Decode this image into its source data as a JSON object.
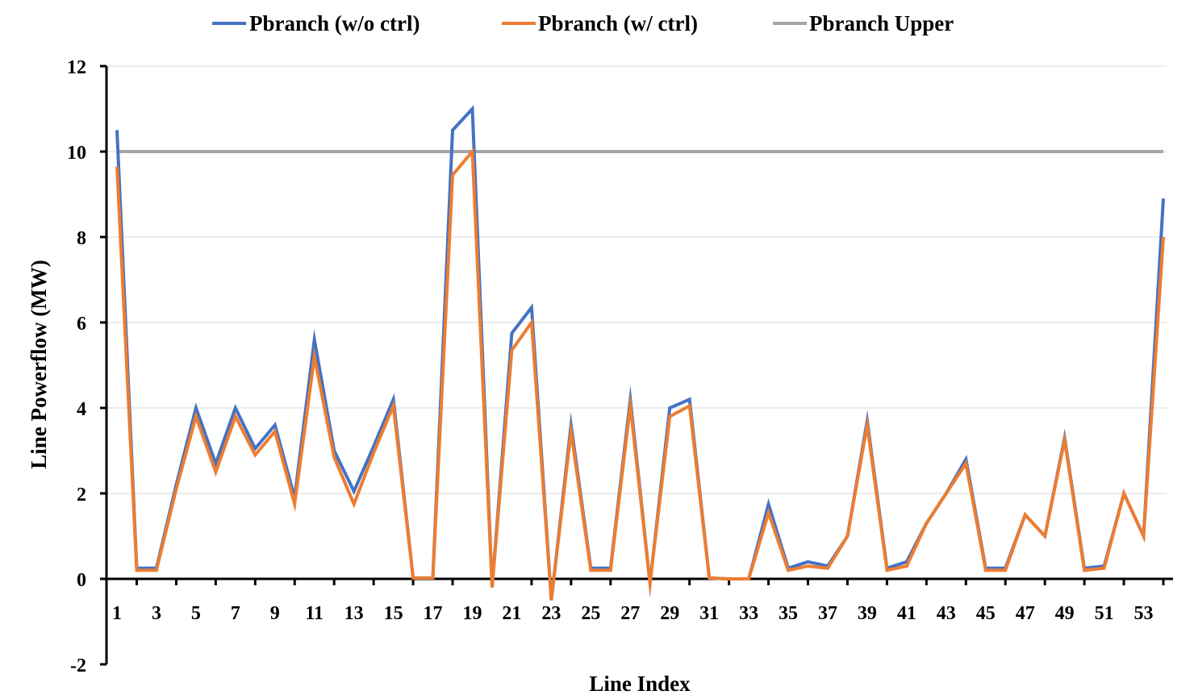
{
  "chart_data": {
    "type": "line",
    "xlabel": "Line Index",
    "ylabel": "Line Powerflow (MW)",
    "ylim": [
      -2,
      12
    ],
    "yticks": [
      -2,
      0,
      2,
      4,
      6,
      8,
      10,
      12
    ],
    "xlim": [
      1,
      54
    ],
    "xtick_labels": [
      "1",
      "3",
      "5",
      "7",
      "9",
      "11",
      "13",
      "15",
      "17",
      "19",
      "21",
      "23",
      "25",
      "27",
      "29",
      "31",
      "33",
      "35",
      "37",
      "39",
      "41",
      "43",
      "45",
      "47",
      "49",
      "51",
      "53"
    ],
    "grid": "horizontal",
    "legend_position": "top",
    "x": [
      1,
      2,
      3,
      4,
      5,
      6,
      7,
      8,
      9,
      10,
      11,
      12,
      13,
      14,
      15,
      16,
      17,
      18,
      19,
      20,
      21,
      22,
      23,
      24,
      25,
      26,
      27,
      28,
      29,
      30,
      31,
      32,
      33,
      34,
      35,
      36,
      37,
      38,
      39,
      40,
      41,
      42,
      43,
      44,
      45,
      46,
      47,
      48,
      49,
      50,
      51,
      52,
      53,
      54
    ],
    "series": [
      {
        "name": "Pbranch (w/o ctrl)",
        "color": "#4472c4",
        "values": [
          10.5,
          0.25,
          0.25,
          2.2,
          4.0,
          2.7,
          4.0,
          3.05,
          3.6,
          1.9,
          5.6,
          3.0,
          2.05,
          3.1,
          4.2,
          0.02,
          0.02,
          10.5,
          11.0,
          -0.2,
          5.75,
          6.35,
          -0.5,
          3.6,
          0.25,
          0.25,
          4.2,
          -0.1,
          4.0,
          4.2,
          0.02,
          0.0,
          0.0,
          1.75,
          0.25,
          0.4,
          0.3,
          1.0,
          3.7,
          0.25,
          0.4,
          1.3,
          2.0,
          2.8,
          0.25,
          0.25,
          1.5,
          1.0,
          3.3,
          0.25,
          0.3,
          2.0,
          1.0,
          8.9
        ]
      },
      {
        "name": "Pbranch (w/ ctrl)",
        "color": "#ed7d31",
        "values": [
          9.65,
          0.2,
          0.2,
          2.1,
          3.8,
          2.5,
          3.8,
          2.9,
          3.45,
          1.75,
          5.2,
          2.85,
          1.75,
          2.95,
          4.05,
          0.02,
          0.02,
          9.45,
          10.0,
          -0.2,
          5.35,
          6.0,
          -0.5,
          3.45,
          0.2,
          0.2,
          4.05,
          -0.1,
          3.8,
          4.05,
          0.02,
          0.0,
          0.0,
          1.55,
          0.2,
          0.3,
          0.25,
          1.0,
          3.6,
          0.2,
          0.3,
          1.3,
          2.0,
          2.7,
          0.2,
          0.2,
          1.5,
          1.0,
          3.25,
          0.2,
          0.25,
          2.0,
          1.0,
          8.0
        ]
      },
      {
        "name": "Pbranch Upper",
        "color": "#a5a5a5",
        "values": [
          10,
          10,
          10,
          10,
          10,
          10,
          10,
          10,
          10,
          10,
          10,
          10,
          10,
          10,
          10,
          10,
          10,
          10,
          10,
          10,
          10,
          10,
          10,
          10,
          10,
          10,
          10,
          10,
          10,
          10,
          10,
          10,
          10,
          10,
          10,
          10,
          10,
          10,
          10,
          10,
          10,
          10,
          10,
          10,
          10,
          10,
          10,
          10,
          10,
          10,
          10,
          10,
          10,
          10
        ]
      }
    ]
  }
}
